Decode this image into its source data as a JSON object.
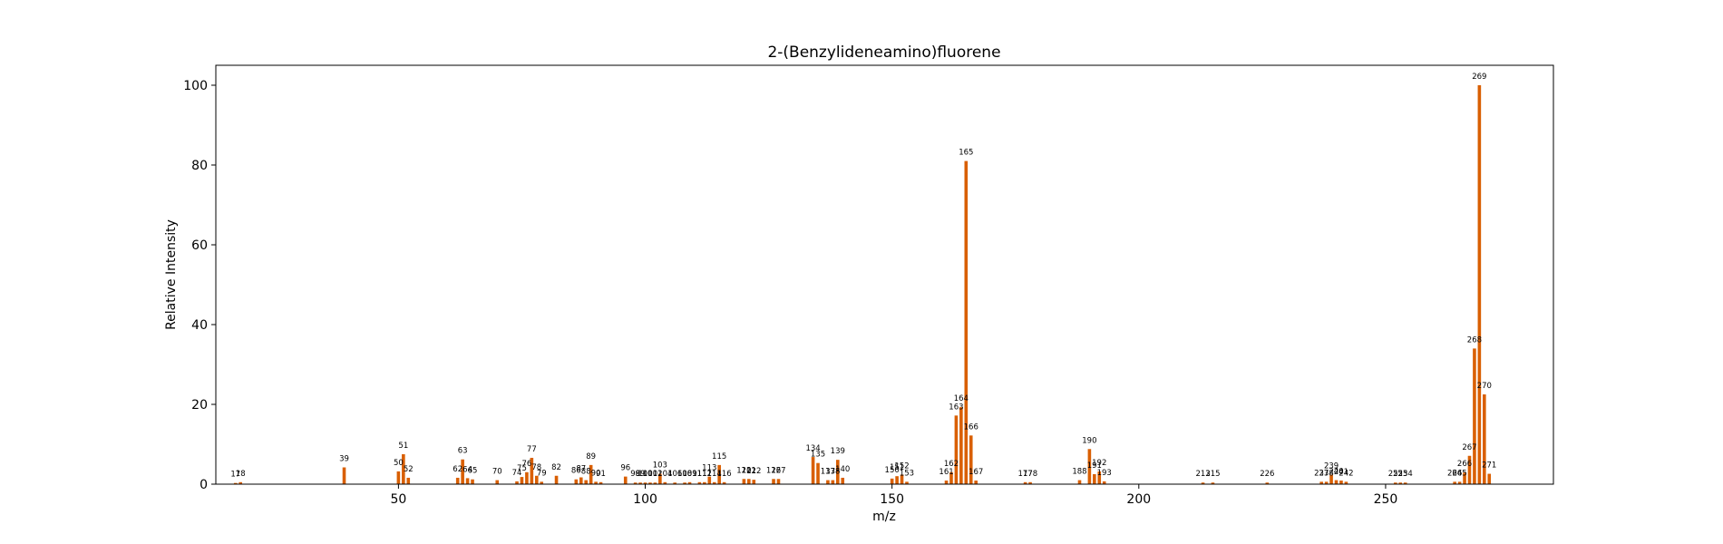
{
  "chart_data": {
    "type": "bar",
    "title": "2-(Benzylideneamino)fluorene",
    "xlabel": "m/z",
    "ylabel": "Relative Intensity",
    "xlim": [
      13,
      284
    ],
    "ylim": [
      0,
      105
    ],
    "xticks": [
      50,
      100,
      150,
      200,
      250
    ],
    "yticks": [
      0,
      20,
      40,
      60,
      80,
      100
    ],
    "grid": false,
    "bar_color": "#d95f02",
    "peaks": [
      {
        "mz": 17,
        "intensity": 0.3
      },
      {
        "mz": 18,
        "intensity": 0.5
      },
      {
        "mz": 39,
        "intensity": 4.2
      },
      {
        "mz": 50,
        "intensity": 3.2
      },
      {
        "mz": 51,
        "intensity": 7.5
      },
      {
        "mz": 52,
        "intensity": 1.6
      },
      {
        "mz": 62,
        "intensity": 1.6
      },
      {
        "mz": 63,
        "intensity": 6.2
      },
      {
        "mz": 64,
        "intensity": 1.5
      },
      {
        "mz": 65,
        "intensity": 1.2
      },
      {
        "mz": 70,
        "intensity": 1.0
      },
      {
        "mz": 74,
        "intensity": 0.7
      },
      {
        "mz": 75,
        "intensity": 1.8
      },
      {
        "mz": 76,
        "intensity": 3.0
      },
      {
        "mz": 77,
        "intensity": 6.6
      },
      {
        "mz": 78,
        "intensity": 2.1
      },
      {
        "mz": 79,
        "intensity": 0.6
      },
      {
        "mz": 82,
        "intensity": 2.1
      },
      {
        "mz": 86,
        "intensity": 1.2
      },
      {
        "mz": 87,
        "intensity": 1.7
      },
      {
        "mz": 88,
        "intensity": 1.0
      },
      {
        "mz": 89,
        "intensity": 4.8
      },
      {
        "mz": 90,
        "intensity": 0.6
      },
      {
        "mz": 91,
        "intensity": 0.5
      },
      {
        "mz": 96,
        "intensity": 1.9
      },
      {
        "mz": 98,
        "intensity": 0.4
      },
      {
        "mz": 99,
        "intensity": 0.4
      },
      {
        "mz": 100,
        "intensity": 0.4
      },
      {
        "mz": 101,
        "intensity": 0.4
      },
      {
        "mz": 102,
        "intensity": 0.4
      },
      {
        "mz": 103,
        "intensity": 2.6
      },
      {
        "mz": 104,
        "intensity": 0.5
      },
      {
        "mz": 106,
        "intensity": 0.4
      },
      {
        "mz": 108,
        "intensity": 0.4
      },
      {
        "mz": 109,
        "intensity": 0.5
      },
      {
        "mz": 111,
        "intensity": 0.5
      },
      {
        "mz": 112,
        "intensity": 0.5
      },
      {
        "mz": 113,
        "intensity": 1.9
      },
      {
        "mz": 114,
        "intensity": 0.5
      },
      {
        "mz": 115,
        "intensity": 4.8
      },
      {
        "mz": 116,
        "intensity": 0.5
      },
      {
        "mz": 120,
        "intensity": 1.3
      },
      {
        "mz": 121,
        "intensity": 1.3
      },
      {
        "mz": 122,
        "intensity": 1.1
      },
      {
        "mz": 126,
        "intensity": 1.3
      },
      {
        "mz": 127,
        "intensity": 1.3
      },
      {
        "mz": 134,
        "intensity": 6.8
      },
      {
        "mz": 135,
        "intensity": 5.3
      },
      {
        "mz": 137,
        "intensity": 1.0
      },
      {
        "mz": 138,
        "intensity": 1.0
      },
      {
        "mz": 139,
        "intensity": 6.1
      },
      {
        "mz": 140,
        "intensity": 1.6
      },
      {
        "mz": 150,
        "intensity": 1.4
      },
      {
        "mz": 151,
        "intensity": 2.0
      },
      {
        "mz": 152,
        "intensity": 2.4
      },
      {
        "mz": 153,
        "intensity": 0.6
      },
      {
        "mz": 161,
        "intensity": 0.9
      },
      {
        "mz": 162,
        "intensity": 3.0
      },
      {
        "mz": 163,
        "intensity": 17.2
      },
      {
        "mz": 164,
        "intensity": 19.3
      },
      {
        "mz": 165,
        "intensity": 81.0
      },
      {
        "mz": 166,
        "intensity": 12.2
      },
      {
        "mz": 167,
        "intensity": 0.9
      },
      {
        "mz": 177,
        "intensity": 0.5
      },
      {
        "mz": 178,
        "intensity": 0.5
      },
      {
        "mz": 188,
        "intensity": 1.0
      },
      {
        "mz": 190,
        "intensity": 8.8
      },
      {
        "mz": 191,
        "intensity": 2.5
      },
      {
        "mz": 192,
        "intensity": 3.2
      },
      {
        "mz": 193,
        "intensity": 0.7
      },
      {
        "mz": 213,
        "intensity": 0.4
      },
      {
        "mz": 215,
        "intensity": 0.4
      },
      {
        "mz": 226,
        "intensity": 0.4
      },
      {
        "mz": 237,
        "intensity": 0.6
      },
      {
        "mz": 238,
        "intensity": 0.6
      },
      {
        "mz": 239,
        "intensity": 2.4
      },
      {
        "mz": 240,
        "intensity": 1.0
      },
      {
        "mz": 241,
        "intensity": 0.9
      },
      {
        "mz": 242,
        "intensity": 0.6
      },
      {
        "mz": 252,
        "intensity": 0.4
      },
      {
        "mz": 253,
        "intensity": 0.4
      },
      {
        "mz": 254,
        "intensity": 0.4
      },
      {
        "mz": 264,
        "intensity": 0.6
      },
      {
        "mz": 265,
        "intensity": 0.6
      },
      {
        "mz": 266,
        "intensity": 2.9
      },
      {
        "mz": 267,
        "intensity": 7.1
      },
      {
        "mz": 268,
        "intensity": 34.0
      },
      {
        "mz": 269,
        "intensity": 100.0
      },
      {
        "mz": 270,
        "intensity": 22.5
      },
      {
        "mz": 271,
        "intensity": 2.6
      }
    ]
  }
}
